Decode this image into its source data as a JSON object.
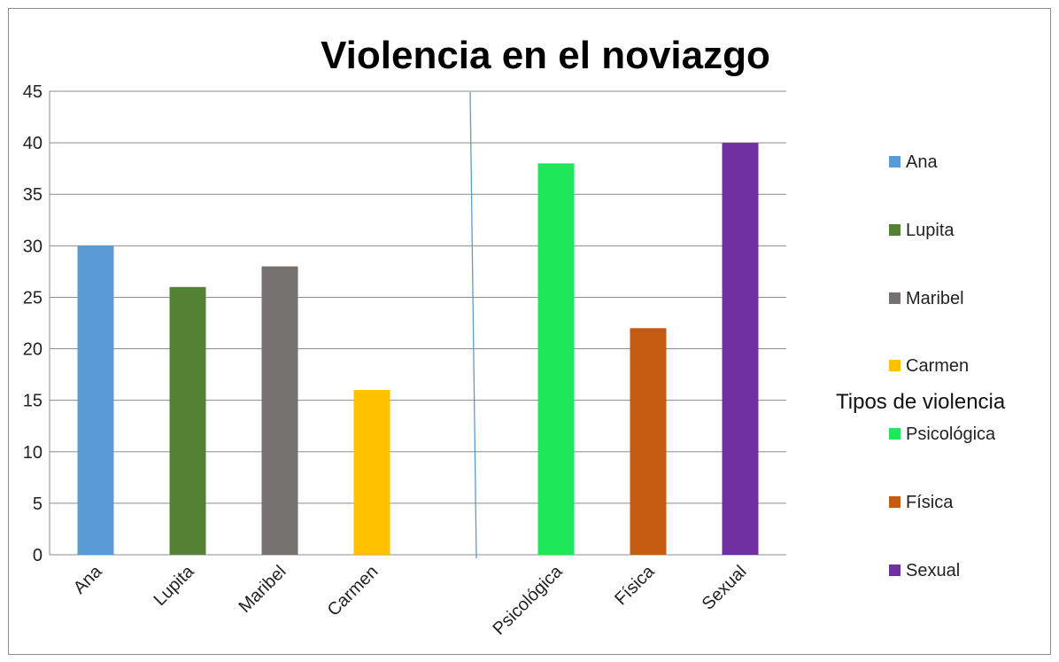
{
  "chart_data": {
    "type": "bar",
    "title": "Violencia en el noviazgo",
    "categories": [
      "Ana",
      "Lupita",
      "Maribel",
      "Carmen",
      "",
      "Psicológica",
      "Física",
      "Sexual"
    ],
    "values": [
      30,
      26,
      28,
      16,
      null,
      38,
      22,
      40
    ],
    "colors": [
      "#5b9bd5",
      "#548235",
      "#767171",
      "#ffc000",
      null,
      "#1ee85a",
      "#c55a11",
      "#7030a0"
    ],
    "ylim": [
      0,
      45
    ],
    "yticks": [
      0,
      5,
      10,
      15,
      20,
      25,
      30,
      35,
      40,
      45
    ],
    "grid": true,
    "legend": {
      "placement": "right",
      "entries": [
        {
          "label": "Ana",
          "color": "#5b9bd5"
        },
        {
          "label": "Lupita",
          "color": "#548235"
        },
        {
          "label": "Maribel",
          "color": "#767171"
        },
        {
          "label": "Carmen",
          "color": "#ffc000"
        },
        {
          "label": "Psicológica",
          "color": "#1ee85a"
        },
        {
          "label": "Física",
          "color": "#c55a11"
        },
        {
          "label": "Sexual",
          "color": "#7030a0"
        }
      ]
    },
    "annotation": "Tipos de violencia",
    "divider_color": "#5b9bd5"
  }
}
